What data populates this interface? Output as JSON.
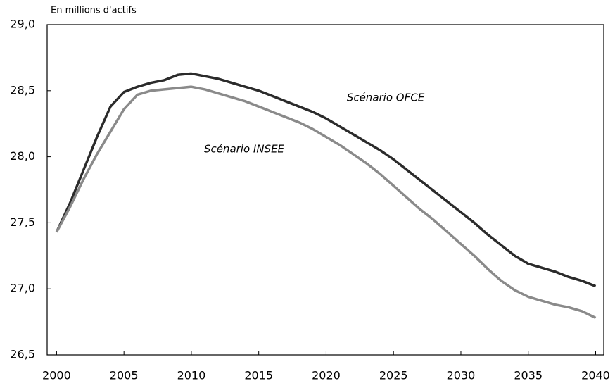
{
  "chart_data": {
    "type": "line",
    "y_label": "En millions d'actifs",
    "x": [
      2000,
      2001,
      2002,
      2003,
      2004,
      2005,
      2006,
      2007,
      2008,
      2009,
      2010,
      2011,
      2012,
      2013,
      2014,
      2015,
      2016,
      2017,
      2018,
      2019,
      2020,
      2021,
      2022,
      2023,
      2024,
      2025,
      2026,
      2027,
      2028,
      2029,
      2030,
      2031,
      2032,
      2033,
      2034,
      2035,
      2036,
      2037,
      2038,
      2039,
      2040
    ],
    "series": [
      {
        "name": "Scénario OFCE",
        "color": "#2b2b2b",
        "values": [
          27.43,
          27.65,
          27.9,
          28.15,
          28.38,
          28.49,
          28.53,
          28.56,
          28.58,
          28.62,
          28.63,
          28.61,
          28.59,
          28.56,
          28.53,
          28.5,
          28.46,
          28.42,
          28.38,
          28.34,
          28.29,
          28.23,
          28.17,
          28.11,
          28.05,
          27.98,
          27.9,
          27.82,
          27.74,
          27.66,
          27.58,
          27.5,
          27.41,
          27.33,
          27.25,
          27.19,
          27.16,
          27.13,
          27.09,
          27.06,
          27.02
        ]
      },
      {
        "name": "Scénario INSEE",
        "color": "#8a8a8a",
        "values": [
          27.43,
          27.62,
          27.83,
          28.02,
          28.19,
          28.36,
          28.47,
          28.5,
          28.51,
          28.52,
          28.53,
          28.51,
          28.48,
          28.45,
          28.42,
          28.38,
          28.34,
          28.3,
          28.26,
          28.21,
          28.15,
          28.09,
          28.02,
          27.95,
          27.87,
          27.78,
          27.69,
          27.6,
          27.52,
          27.43,
          27.34,
          27.25,
          27.15,
          27.06,
          26.99,
          26.94,
          26.91,
          26.88,
          26.86,
          26.83,
          26.78
        ]
      }
    ],
    "xlim": [
      1999.3,
      2040.6
    ],
    "xticks": [
      2000,
      2005,
      2010,
      2015,
      2020,
      2025,
      2030,
      2035,
      2040
    ],
    "ylim": [
      26.5,
      29.0
    ],
    "yticks": [
      {
        "value": 26.5,
        "label": "26,5"
      },
      {
        "value": 27.0,
        "label": "27,0"
      },
      {
        "value": 27.5,
        "label": "27,5"
      },
      {
        "value": 28.0,
        "label": "28,0"
      },
      {
        "value": 28.5,
        "label": "28,5"
      },
      {
        "value": 29.0,
        "label": "29,0"
      }
    ]
  }
}
